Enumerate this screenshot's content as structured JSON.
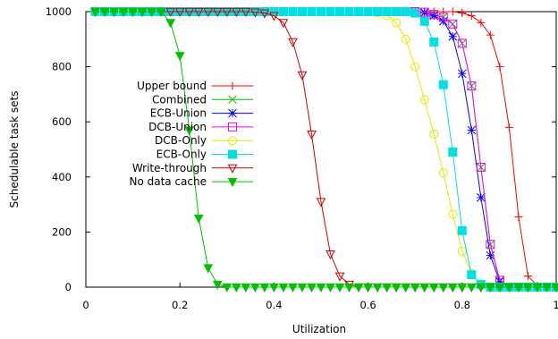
{
  "chart_data": {
    "type": "line",
    "title": "",
    "xlabel": "Utilization",
    "ylabel": "Schedulable task sets",
    "xlim": [
      0,
      1
    ],
    "ylim": [
      0,
      1000
    ],
    "xticks": [
      0,
      0.2,
      0.4,
      0.6,
      0.8,
      1
    ],
    "yticks": [
      0,
      200,
      400,
      600,
      800,
      1000
    ],
    "xtick_labels": [
      "0",
      "0.2",
      "0.4",
      "0.6",
      "0.8",
      "1"
    ],
    "ytick_labels": [
      "0",
      "200",
      "400",
      "600",
      "800",
      "1000"
    ],
    "grid": false,
    "legend_position": "left",
    "series": [
      {
        "name": "Upper bound",
        "color": "#ff0000",
        "marker": "plus",
        "x": [
          0.02,
          0.04,
          0.06,
          0.08,
          0.1,
          0.12,
          0.14,
          0.16,
          0.18,
          0.2,
          0.22,
          0.24,
          0.26,
          0.28,
          0.3,
          0.32,
          0.34,
          0.36,
          0.38,
          0.4,
          0.42,
          0.44,
          0.46,
          0.48,
          0.5,
          0.52,
          0.54,
          0.56,
          0.58,
          0.6,
          0.62,
          0.64,
          0.66,
          0.68,
          0.7,
          0.72,
          0.74,
          0.76,
          0.78,
          0.8,
          0.82,
          0.84,
          0.86,
          0.88,
          0.9,
          0.92,
          0.94,
          0.96,
          0.98,
          1.0
        ],
        "y": [
          1000,
          1000,
          1000,
          1000,
          1000,
          1000,
          1000,
          1000,
          1000,
          1000,
          1000,
          1000,
          1000,
          1000,
          1000,
          1000,
          1000,
          1000,
          1000,
          1000,
          1000,
          1000,
          1000,
          1000,
          1000,
          1000,
          1000,
          1000,
          1000,
          1000,
          1000,
          1000,
          1000,
          1000,
          1000,
          1000,
          1000,
          1000,
          1000,
          995,
          985,
          960,
          915,
          800,
          580,
          255,
          40,
          5,
          0,
          0
        ]
      },
      {
        "name": "Combined",
        "color": "#00c000",
        "marker": "x",
        "x": [
          0.02,
          0.04,
          0.06,
          0.08,
          0.1,
          0.12,
          0.14,
          0.16,
          0.18,
          0.2,
          0.22,
          0.24,
          0.26,
          0.28,
          0.3,
          0.32,
          0.34,
          0.36,
          0.38,
          0.4,
          0.42,
          0.44,
          0.46,
          0.48,
          0.5,
          0.52,
          0.54,
          0.56,
          0.58,
          0.6,
          0.62,
          0.64,
          0.66,
          0.68,
          0.7,
          0.72,
          0.74,
          0.76,
          0.78,
          0.8,
          0.82,
          0.84,
          0.86,
          0.88,
          0.9,
          0.92,
          0.94,
          0.96,
          0.98,
          1.0
        ],
        "y": [
          1000,
          1000,
          1000,
          1000,
          1000,
          1000,
          1000,
          1000,
          1000,
          1000,
          1000,
          1000,
          1000,
          1000,
          1000,
          1000,
          1000,
          1000,
          1000,
          1000,
          1000,
          1000,
          1000,
          1000,
          1000,
          1000,
          1000,
          1000,
          1000,
          1000,
          1000,
          1000,
          1000,
          1000,
          1000,
          998,
          990,
          980,
          955,
          885,
          730,
          435,
          155,
          25,
          0,
          0,
          0,
          0,
          0,
          0
        ]
      },
      {
        "name": "ECB-Union",
        "color": "#0000ff",
        "marker": "star",
        "x": [
          0.02,
          0.04,
          0.06,
          0.08,
          0.1,
          0.12,
          0.14,
          0.16,
          0.18,
          0.2,
          0.22,
          0.24,
          0.26,
          0.28,
          0.3,
          0.32,
          0.34,
          0.36,
          0.38,
          0.4,
          0.42,
          0.44,
          0.46,
          0.48,
          0.5,
          0.52,
          0.54,
          0.56,
          0.58,
          0.6,
          0.62,
          0.64,
          0.66,
          0.68,
          0.7,
          0.72,
          0.74,
          0.76,
          0.78,
          0.8,
          0.82,
          0.84,
          0.86,
          0.88,
          0.9,
          0.92,
          0.94,
          0.96,
          0.98,
          1.0
        ],
        "y": [
          1000,
          1000,
          1000,
          1000,
          1000,
          1000,
          1000,
          1000,
          1000,
          1000,
          1000,
          1000,
          1000,
          1000,
          1000,
          1000,
          1000,
          1000,
          1000,
          1000,
          1000,
          1000,
          1000,
          1000,
          1000,
          1000,
          1000,
          1000,
          1000,
          1000,
          1000,
          1000,
          1000,
          1000,
          1000,
          996,
          985,
          965,
          910,
          775,
          570,
          325,
          115,
          20,
          0,
          0,
          0,
          0,
          0,
          0
        ]
      },
      {
        "name": "DCB-Union",
        "color": "#ff00ff",
        "marker": "square-open",
        "x": [
          0.02,
          0.04,
          0.06,
          0.08,
          0.1,
          0.12,
          0.14,
          0.16,
          0.18,
          0.2,
          0.22,
          0.24,
          0.26,
          0.28,
          0.3,
          0.32,
          0.34,
          0.36,
          0.38,
          0.4,
          0.42,
          0.44,
          0.46,
          0.48,
          0.5,
          0.52,
          0.54,
          0.56,
          0.58,
          0.6,
          0.62,
          0.64,
          0.66,
          0.68,
          0.7,
          0.72,
          0.74,
          0.76,
          0.78,
          0.8,
          0.82,
          0.84,
          0.86,
          0.88,
          0.9,
          0.92,
          0.94,
          0.96,
          0.98,
          1.0
        ],
        "y": [
          1000,
          1000,
          1000,
          1000,
          1000,
          1000,
          1000,
          1000,
          1000,
          1000,
          1000,
          1000,
          1000,
          1000,
          1000,
          1000,
          1000,
          1000,
          1000,
          1000,
          1000,
          1000,
          1000,
          1000,
          1000,
          1000,
          1000,
          1000,
          1000,
          1000,
          1000,
          1000,
          1000,
          1000,
          1000,
          998,
          990,
          980,
          955,
          885,
          730,
          435,
          155,
          25,
          0,
          0,
          0,
          0,
          0,
          0
        ]
      },
      {
        "name": "DCB-Only",
        "color": "#e8e800",
        "marker": "circle-open",
        "x": [
          0.02,
          0.04,
          0.06,
          0.08,
          0.1,
          0.12,
          0.14,
          0.16,
          0.18,
          0.2,
          0.22,
          0.24,
          0.26,
          0.28,
          0.3,
          0.32,
          0.34,
          0.36,
          0.38,
          0.4,
          0.42,
          0.44,
          0.46,
          0.48,
          0.5,
          0.52,
          0.54,
          0.56,
          0.58,
          0.6,
          0.62,
          0.64,
          0.66,
          0.68,
          0.7,
          0.72,
          0.74,
          0.76,
          0.78,
          0.8,
          0.82,
          0.84,
          0.86,
          0.88,
          0.9,
          0.92,
          0.94,
          0.96,
          0.98,
          1.0
        ],
        "y": [
          1000,
          1000,
          1000,
          1000,
          1000,
          1000,
          1000,
          1000,
          1000,
          1000,
          1000,
          1000,
          1000,
          1000,
          1000,
          1000,
          1000,
          1000,
          1000,
          1000,
          1000,
          1000,
          1000,
          1000,
          1000,
          1000,
          1000,
          1000,
          1000,
          1000,
          995,
          985,
          960,
          900,
          800,
          680,
          555,
          415,
          265,
          130,
          50,
          10,
          0,
          0,
          0,
          0,
          0,
          0,
          0,
          0
        ]
      },
      {
        "name": "ECB-Only",
        "color": "#00e0e0",
        "marker": "square-filled",
        "x": [
          0.02,
          0.04,
          0.06,
          0.08,
          0.1,
          0.12,
          0.14,
          0.16,
          0.18,
          0.2,
          0.22,
          0.24,
          0.26,
          0.28,
          0.3,
          0.32,
          0.34,
          0.36,
          0.38,
          0.4,
          0.42,
          0.44,
          0.46,
          0.48,
          0.5,
          0.52,
          0.54,
          0.56,
          0.58,
          0.6,
          0.62,
          0.64,
          0.66,
          0.68,
          0.7,
          0.72,
          0.74,
          0.76,
          0.78,
          0.8,
          0.82,
          0.84,
          0.86,
          0.88,
          0.9,
          0.92,
          0.94,
          0.96,
          0.98,
          1.0
        ],
        "y": [
          1000,
          1000,
          1000,
          1000,
          1000,
          1000,
          1000,
          1000,
          1000,
          1000,
          1000,
          1000,
          1000,
          1000,
          1000,
          1000,
          1000,
          1000,
          1000,
          1000,
          1000,
          1000,
          1000,
          1000,
          1000,
          1000,
          1000,
          1000,
          1000,
          1000,
          1000,
          1000,
          1000,
          1000,
          995,
          965,
          890,
          735,
          490,
          205,
          45,
          10,
          0,
          0,
          0,
          0,
          0,
          0,
          0,
          0
        ]
      },
      {
        "name": "Write-through",
        "color": "#d00000",
        "marker": "triangle-down-open",
        "x": [
          0.02,
          0.04,
          0.06,
          0.08,
          0.1,
          0.12,
          0.14,
          0.16,
          0.18,
          0.2,
          0.22,
          0.24,
          0.26,
          0.28,
          0.3,
          0.32,
          0.34,
          0.36,
          0.38,
          0.4,
          0.42,
          0.44,
          0.46,
          0.48,
          0.5,
          0.52,
          0.54,
          0.56,
          0.58,
          0.6,
          0.62,
          0.64,
          0.66,
          0.68,
          0.7,
          0.72,
          0.74,
          0.76,
          0.78,
          0.8,
          0.82,
          0.84,
          0.86,
          0.88,
          0.9,
          0.92,
          0.94,
          0.96,
          0.98,
          1.0
        ],
        "y": [
          1000,
          1000,
          1000,
          1000,
          1000,
          1000,
          1000,
          1000,
          1000,
          1000,
          1000,
          1000,
          1000,
          1000,
          1000,
          1000,
          1000,
          998,
          995,
          985,
          960,
          890,
          770,
          555,
          310,
          120,
          40,
          10,
          0,
          0,
          0,
          0,
          0,
          0,
          0,
          0,
          0,
          0,
          0,
          0,
          0,
          0,
          0,
          0,
          0,
          0,
          0,
          0,
          0,
          0
        ]
      },
      {
        "name": "No data cache",
        "color": "#00c000",
        "marker": "triangle-down-filled",
        "x": [
          0.02,
          0.04,
          0.06,
          0.08,
          0.1,
          0.12,
          0.14,
          0.16,
          0.18,
          0.2,
          0.22,
          0.24,
          0.26,
          0.28,
          0.3,
          0.32,
          0.34,
          0.36,
          0.38,
          0.4,
          0.42,
          0.44,
          0.46,
          0.48,
          0.5,
          0.52,
          0.54,
          0.56,
          0.58,
          0.6,
          0.62,
          0.64,
          0.66,
          0.68,
          0.7,
          0.72,
          0.74,
          0.76,
          0.78,
          0.8,
          0.82,
          0.84,
          0.86,
          0.88,
          0.9,
          0.92,
          0.94,
          0.96,
          0.98,
          1.0
        ],
        "y": [
          1000,
          1000,
          1000,
          1000,
          1000,
          1000,
          1000,
          1000,
          960,
          840,
          570,
          250,
          70,
          10,
          0,
          0,
          0,
          0,
          0,
          0,
          0,
          0,
          0,
          0,
          0,
          0,
          0,
          0,
          0,
          0,
          0,
          0,
          0,
          0,
          0,
          0,
          0,
          0,
          0,
          0,
          0,
          0,
          0,
          0,
          0,
          0,
          0,
          0,
          0,
          0
        ]
      }
    ]
  }
}
